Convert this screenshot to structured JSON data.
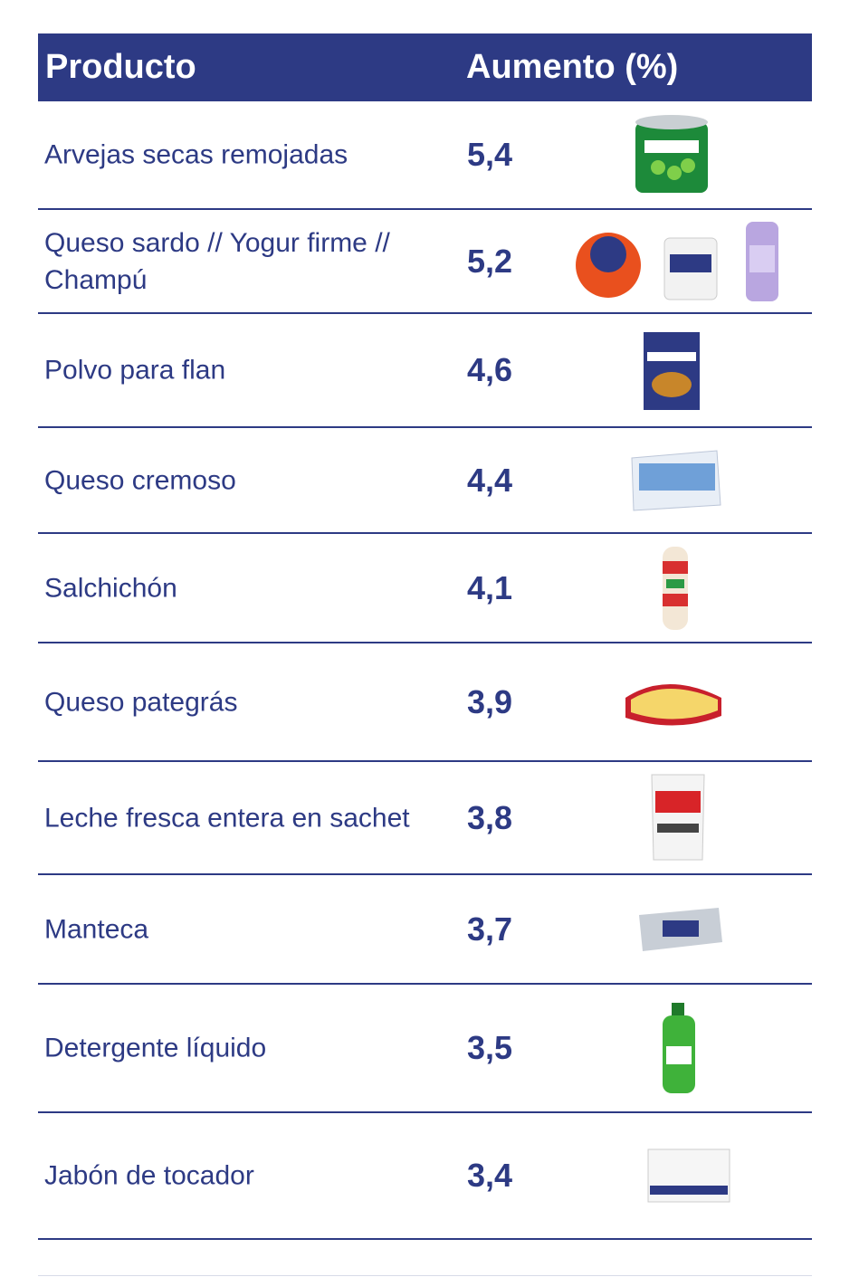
{
  "table": {
    "header": [
      "Producto",
      "Aumento (%)"
    ],
    "rows": [
      [
        "Arvejas secas remojadas",
        "5,4"
      ],
      [
        "Queso sardo // Yogur firme // Champú",
        "5,2"
      ],
      [
        "Polvo para flan",
        "4,6"
      ],
      [
        "Queso cremoso",
        "4,4"
      ],
      [
        "Salchichón",
        "4,1"
      ],
      [
        "Queso pategrás",
        "3,9"
      ],
      [
        "Leche fresca entera en sachet",
        "3,8"
      ],
      [
        "Manteca",
        "3,7"
      ],
      [
        "Detergente líquido",
        "3,5"
      ],
      [
        "Jabón de tocador",
        "3,4"
      ]
    ]
  }
}
